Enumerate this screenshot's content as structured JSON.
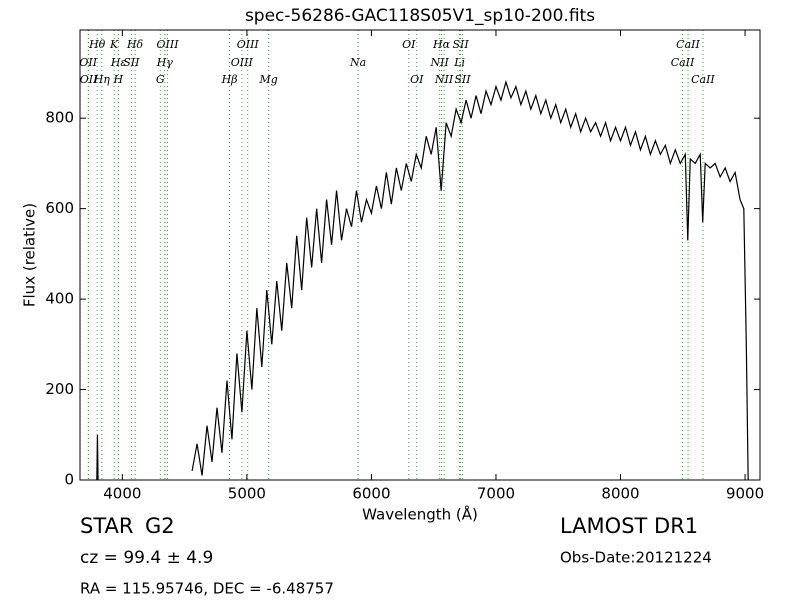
{
  "chart_data": {
    "type": "line",
    "title": "spec-56286-GAC118S05V1_sp10-200.fits",
    "x_label": "Wavelength (Å)",
    "y_label": "Flux (relative)",
    "xlim": [
      3660,
      9120
    ],
    "ylim": [
      0,
      995
    ],
    "xticks": [
      4000,
      5000,
      6000,
      7000,
      8000,
      9000
    ],
    "yticks": [
      0,
      200,
      400,
      600,
      800
    ],
    "color": "#000000",
    "line_color": "#33aa33",
    "x": [
      3795,
      3800,
      3805,
      3850,
      4560,
      4600,
      4640,
      4680,
      4720,
      4760,
      4800,
      4840,
      4880,
      4920,
      4960,
      5000,
      5040,
      5080,
      5120,
      5160,
      5200,
      5240,
      5280,
      5320,
      5360,
      5400,
      5440,
      5480,
      5520,
      5560,
      5600,
      5640,
      5680,
      5720,
      5760,
      5800,
      5840,
      5880,
      5920,
      5960,
      6000,
      6040,
      6080,
      6120,
      6160,
      6200,
      6240,
      6280,
      6320,
      6360,
      6400,
      6440,
      6480,
      6520,
      6560,
      6600,
      6640,
      6680,
      6720,
      6760,
      6800,
      6840,
      6880,
      6920,
      6960,
      7000,
      7040,
      7080,
      7120,
      7160,
      7200,
      7240,
      7280,
      7320,
      7360,
      7400,
      7440,
      7480,
      7520,
      7560,
      7600,
      7640,
      7680,
      7720,
      7760,
      7800,
      7840,
      7880,
      7920,
      7960,
      8000,
      8040,
      8080,
      8120,
      8160,
      8200,
      8240,
      8280,
      8320,
      8360,
      8400,
      8440,
      8480,
      8520,
      8540,
      8560,
      8600,
      8640,
      8660,
      8680,
      8720,
      8760,
      8800,
      8840,
      8880,
      8920,
      8960,
      8990,
      9010,
      9025
    ],
    "values": [
      0,
      100,
      0,
      null,
      20,
      80,
      10,
      120,
      40,
      160,
      60,
      220,
      90,
      280,
      150,
      330,
      200,
      380,
      250,
      420,
      300,
      440,
      330,
      480,
      380,
      540,
      420,
      580,
      470,
      600,
      480,
      620,
      520,
      640,
      530,
      600,
      560,
      640,
      570,
      620,
      590,
      650,
      600,
      680,
      610,
      690,
      640,
      700,
      660,
      720,
      690,
      760,
      720,
      780,
      640,
      790,
      760,
      820,
      790,
      840,
      800,
      850,
      810,
      860,
      830,
      870,
      840,
      880,
      845,
      870,
      830,
      860,
      820,
      850,
      810,
      840,
      800,
      830,
      790,
      820,
      780,
      810,
      770,
      800,
      770,
      790,
      760,
      790,
      750,
      780,
      750,
      780,
      740,
      770,
      730,
      760,
      720,
      750,
      720,
      740,
      700,
      730,
      700,
      720,
      530,
      710,
      700,
      720,
      570,
      700,
      690,
      700,
      670,
      690,
      660,
      680,
      620,
      600,
      300,
      0
    ],
    "spectral_lines": [
      {
        "label": "Hθ",
        "wavelength": 3798
      },
      {
        "label": "K",
        "wavelength": 3934
      },
      {
        "label": "Hδ",
        "wavelength": 4102
      },
      {
        "label": "OIII",
        "wavelength": 4363
      },
      {
        "label": "OIII",
        "wavelength": 5007
      },
      {
        "label": "OI",
        "wavelength": 6300
      },
      {
        "label": "Hα",
        "wavelength": 6563
      },
      {
        "label": "SII",
        "wavelength": 6716
      },
      {
        "label": "CaII",
        "wavelength": 8542
      },
      {
        "label": "OII",
        "wavelength": 3726
      },
      {
        "label": "Hε",
        "wavelength": 3970
      },
      {
        "label": "SII",
        "wavelength": 4072
      },
      {
        "label": "Hγ",
        "wavelength": 4341
      },
      {
        "label": "OIII",
        "wavelength": 4959
      },
      {
        "label": "Na",
        "wavelength": 5893
      },
      {
        "label": "NII",
        "wavelength": 6548
      },
      {
        "label": "Li",
        "wavelength": 6708
      },
      {
        "label": "CaII",
        "wavelength": 8498
      },
      {
        "label": "OII",
        "wavelength": 3729
      },
      {
        "label": "Hη",
        "wavelength": 3835
      },
      {
        "label": "H",
        "wavelength": 3968
      },
      {
        "label": "G",
        "wavelength": 4305
      },
      {
        "label": "Hβ",
        "wavelength": 4861
      },
      {
        "label": "Mg",
        "wavelength": 5175
      },
      {
        "label": "OI",
        "wavelength": 6364
      },
      {
        "label": "NII",
        "wavelength": 6583
      },
      {
        "label": "SII",
        "wavelength": 6731
      },
      {
        "label": "CaII",
        "wavelength": 8662
      }
    ],
    "object_class": "STAR",
    "subclass": "G2",
    "redshift": "cz = 99.4 ± 4.9",
    "coords": "RA = 115.95746, DEC = -6.48757",
    "survey": "LAMOST DR1",
    "obs_date": "Obs-Date:20121224"
  }
}
